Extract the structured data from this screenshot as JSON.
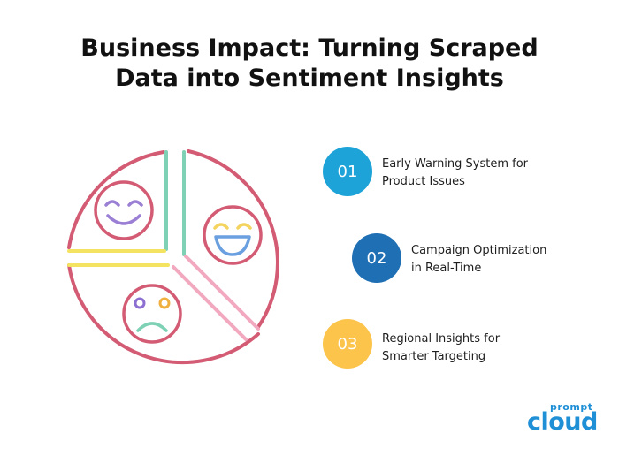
{
  "title": {
    "line1": "Business Impact: Turning Scraped",
    "line2": "Data into Sentiment Insights"
  },
  "items": [
    {
      "number": "01",
      "line1": "Early Warning System for",
      "line2": "Product Issues",
      "color": "#1ea3d8"
    },
    {
      "number": "02",
      "line1": "Campaign Optimization",
      "line2": "in Real-Time",
      "color": "#1f6fb5"
    },
    {
      "number": "03",
      "line1": "Regional Insights for",
      "line2": "Smarter Targeting",
      "color": "#fcc44a"
    }
  ],
  "diagram": {
    "outline_color": "#d35b73",
    "divider_colors": [
      "#7fd1b5",
      "#f4e361",
      "#f2a8bf"
    ],
    "faces": [
      {
        "mood": "happy",
        "eye_colors": [
          "#9b7fd4",
          "#9b7fd4"
        ],
        "mouth_color": "#9b7fd4",
        "outline_color": "#d35b73"
      },
      {
        "mood": "laughing",
        "eye_colors": [
          "#f4d35e",
          "#f4d35e"
        ],
        "mouth_color": "#6aa0e0",
        "outline_color": "#d35b73"
      },
      {
        "mood": "sad",
        "eye_colors": [
          "#8c6fd1",
          "#f0b040"
        ],
        "mouth_color": "#7fd1b5",
        "outline_color": "#d35b73"
      }
    ]
  },
  "logo": {
    "top_text": "prompt",
    "main_text": "cloud",
    "color": "#1f8fd6"
  }
}
